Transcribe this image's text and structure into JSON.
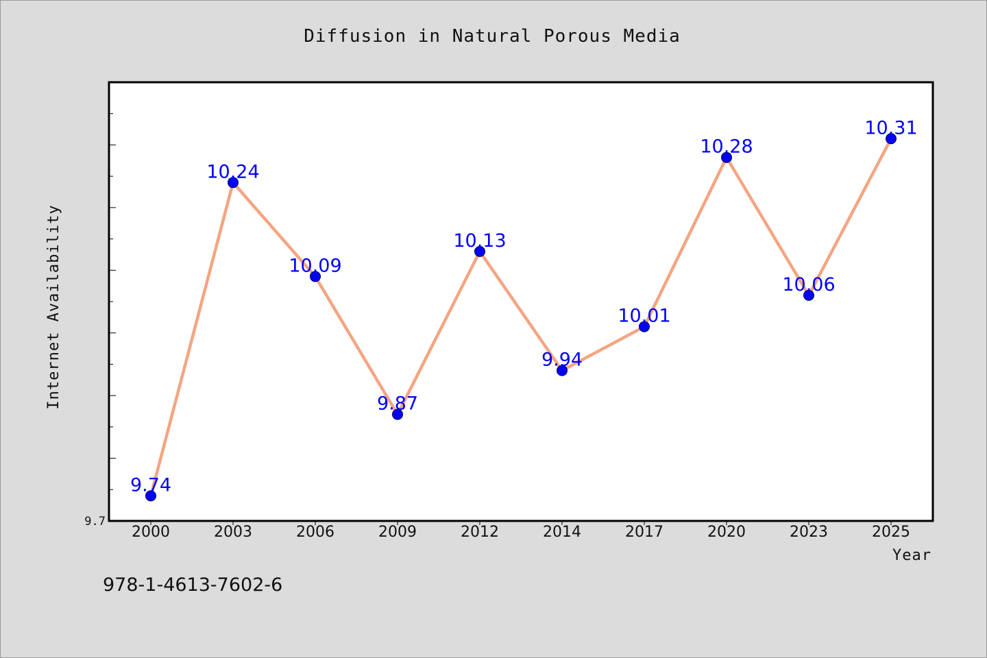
{
  "chart_data": {
    "type": "line",
    "title": "Diffusion in Natural Porous Media",
    "xlabel": "Year",
    "ylabel": "Internet Availability",
    "categories": [
      "2000",
      "2003",
      "2006",
      "2009",
      "2012",
      "2014",
      "2017",
      "2020",
      "2023",
      "2025"
    ],
    "series": [
      {
        "values": [
          9.74,
          10.24,
          10.09,
          9.87,
          10.13,
          9.94,
          10.01,
          10.28,
          10.06,
          10.31
        ]
      }
    ],
    "data_labels": [
      "9.74",
      "10.24",
      "10.09",
      "9.87",
      "10.13",
      "9.94",
      "10.01",
      "10.28",
      "10.06",
      "10.31"
    ],
    "ylim": [
      9.7,
      10.4
    ],
    "y_tick_labels": [
      "9.7"
    ],
    "grid": false,
    "legend": "none",
    "colors": {
      "line": "#f4a582",
      "marker": "#0000ff",
      "data_label": "#0000ff",
      "background": "#dcdcdc",
      "plot_background": "#ffffff"
    }
  },
  "footer": {
    "isbn": "978-1-4613-7602-6"
  }
}
